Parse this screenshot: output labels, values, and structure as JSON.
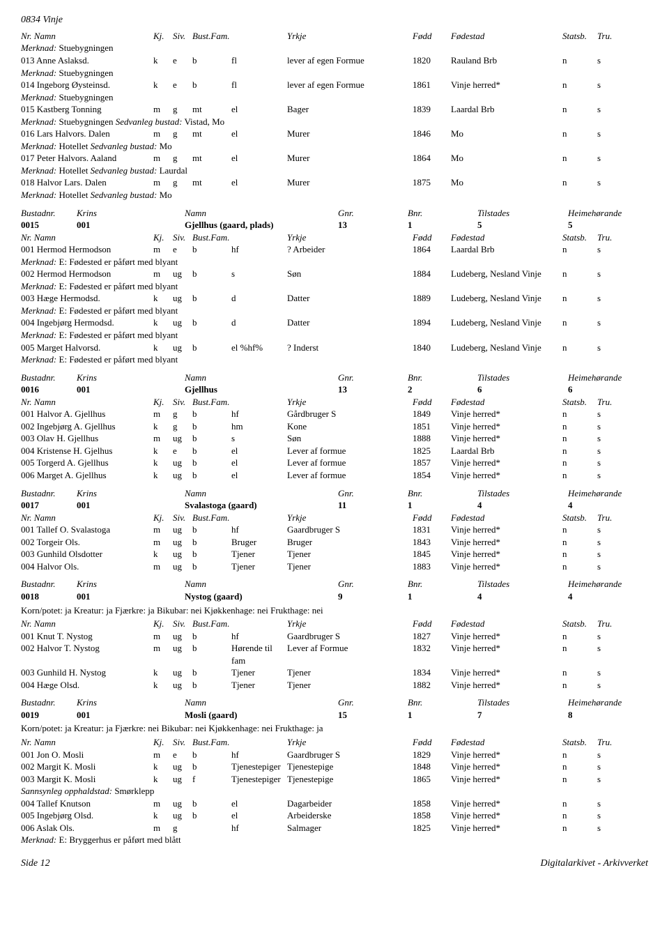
{
  "header_id": "0834 Vinje",
  "col_headers": {
    "nr": "Nr.",
    "namn": "Namn",
    "kj": "Kj.",
    "siv": "Siv.",
    "bust": "Bust.",
    "fam": "Fam.",
    "yrkje": "Yrkje",
    "fodd": "Fødd",
    "fodestad": "Fødestad",
    "statsb": "Statsb.",
    "tru": "Tru."
  },
  "merknad_label": "Merknad:",
  "sedvanleg_label": "Sedvanleg bustad:",
  "sannsynleg_label": "Sannsynleg opphaldstad:",
  "bustad_header": {
    "bustadnr": "Bustadnr.",
    "krins": "Krins",
    "namn": "Namn",
    "gnr": "Gnr.",
    "bnr": "Bnr.",
    "tilstades": "Tilstades",
    "heimehorande": "Heimehørande"
  },
  "top_merknad": "Stuebygningen",
  "top_rows": [
    {
      "nr": "013",
      "namn": "Anne Aslaksd.",
      "kj": "k",
      "siv": "e",
      "bust": "b",
      "fam": "fl",
      "yrkje": "lever af egen Formue",
      "fodd": "1820",
      "sted": "Rauland Brb",
      "s": "n",
      "t": "s",
      "merk": "Stuebygningen"
    },
    {
      "nr": "014",
      "namn": "Ingeborg Øysteinsd.",
      "kj": "k",
      "siv": "e",
      "bust": "b",
      "fam": "fl",
      "yrkje": "lever af egen Formue",
      "fodd": "1861",
      "sted": "Vinje herred*",
      "s": "n",
      "t": "s",
      "merk": "Stuebygningen"
    },
    {
      "nr": "015",
      "namn": "Kastberg Tonning",
      "kj": "m",
      "siv": "g",
      "bust": "mt",
      "fam": "el",
      "yrkje": "Bager",
      "fodd": "1839",
      "sted": "Laardal Brb",
      "s": "n",
      "t": "s",
      "merk": "Stuebygningen",
      "sed": "Vistad, Mo"
    },
    {
      "nr": "016",
      "namn": "Lars Halvors. Dalen",
      "kj": "m",
      "siv": "g",
      "bust": "mt",
      "fam": "el",
      "yrkje": "Murer",
      "fodd": "1846",
      "sted": "Mo",
      "s": "n",
      "t": "s",
      "merk": "Hotellet",
      "sed": "Mo"
    },
    {
      "nr": "017",
      "namn": "Peter Halvors. Aaland",
      "kj": "m",
      "siv": "g",
      "bust": "mt",
      "fam": "el",
      "yrkje": "Murer",
      "fodd": "1864",
      "sted": "Mo",
      "s": "n",
      "t": "s",
      "merk": "Hotellet",
      "sed": "Laurdal"
    },
    {
      "nr": "018",
      "namn": "Halvor Lars. Dalen",
      "kj": "m",
      "siv": "g",
      "bust": "mt",
      "fam": "el",
      "yrkje": "Murer",
      "fodd": "1875",
      "sted": "Mo",
      "s": "n",
      "t": "s",
      "merk": "Hotellet",
      "sed": "Mo"
    }
  ],
  "sections": [
    {
      "bustad": {
        "bnr": "0015",
        "krins": "001",
        "namn": "Gjellhus (gaard, plads)",
        "gnr": "13",
        "bn": "1",
        "til": "5",
        "heim": "5"
      },
      "rows": [
        {
          "nr": "001",
          "namn": "Hermod Hermodson",
          "kj": "m",
          "siv": "e",
          "bust": "b",
          "fam": "hf",
          "yrkje": "? Arbeider",
          "fodd": "1864",
          "sted": "Laardal Brb",
          "s": "n",
          "t": "s",
          "merk": "E: Fødested er påført med blyant"
        },
        {
          "nr": "002",
          "namn": "Hermod Hermodson",
          "kj": "m",
          "siv": "ug",
          "bust": "b",
          "fam": "s",
          "yrkje": "Søn",
          "fodd": "1884",
          "sted": "Ludeberg, Nesland Vinje",
          "s": "n",
          "t": "s",
          "merk": "E: Fødested er påført med blyant"
        },
        {
          "nr": "003",
          "namn": "Hæge Hermodsd.",
          "kj": "k",
          "siv": "ug",
          "bust": "b",
          "fam": "d",
          "yrkje": "Datter",
          "fodd": "1889",
          "sted": "Ludeberg, Nesland Vinje",
          "s": "n",
          "t": "s",
          "merk": "E: Fødested er påført med blyant"
        },
        {
          "nr": "004",
          "namn": "Ingebjørg Hermodsd.",
          "kj": "k",
          "siv": "ug",
          "bust": "b",
          "fam": "d",
          "yrkje": "Datter",
          "fodd": "1894",
          "sted": "Ludeberg, Nesland Vinje",
          "s": "n",
          "t": "s",
          "merk": "E: Fødested er påført med blyant"
        },
        {
          "nr": "005",
          "namn": "Marget Halvorsd.",
          "kj": "k",
          "siv": "ug",
          "bust": "b",
          "fam": "el %hf%",
          "yrkje": "? Inderst",
          "fodd": "1840",
          "sted": "Ludeberg, Nesland Vinje",
          "s": "n",
          "t": "s",
          "merk": "E: Fødested er påført med blyant"
        }
      ]
    },
    {
      "bustad": {
        "bnr": "0016",
        "krins": "001",
        "namn": "Gjellhus",
        "gnr": "13",
        "bn": "2",
        "til": "6",
        "heim": "6"
      },
      "rows": [
        {
          "nr": "001",
          "namn": "Halvor A. Gjellhus",
          "kj": "m",
          "siv": "g",
          "bust": "b",
          "fam": "hf",
          "yrkje": "Gårdbruger S",
          "fodd": "1849",
          "sted": "Vinje herred*",
          "s": "n",
          "t": "s"
        },
        {
          "nr": "002",
          "namn": "Ingebjørg A. Gjellhus",
          "kj": "k",
          "siv": "g",
          "bust": "b",
          "fam": "hm",
          "yrkje": "Kone",
          "fodd": "1851",
          "sted": "Vinje herred*",
          "s": "n",
          "t": "s"
        },
        {
          "nr": "003",
          "namn": "Olav H. Gjellhus",
          "kj": "m",
          "siv": "ug",
          "bust": "b",
          "fam": "s",
          "yrkje": "Søn",
          "fodd": "1888",
          "sted": "Vinje herred*",
          "s": "n",
          "t": "s"
        },
        {
          "nr": "004",
          "namn": "Kristense H. Gjelhus",
          "kj": "k",
          "siv": "e",
          "bust": "b",
          "fam": "el",
          "yrkje": "Lever af formue",
          "fodd": "1825",
          "sted": "Laardal Brb",
          "s": "n",
          "t": "s"
        },
        {
          "nr": "005",
          "namn": "Torgerd A. Gjellhus",
          "kj": "k",
          "siv": "ug",
          "bust": "b",
          "fam": "el",
          "yrkje": "Lever af formue",
          "fodd": "1857",
          "sted": "Vinje herred*",
          "s": "n",
          "t": "s"
        },
        {
          "nr": "006",
          "namn": "Marget A. Gjellhus",
          "kj": "k",
          "siv": "ug",
          "bust": "b",
          "fam": "el",
          "yrkje": "Lever af formue",
          "fodd": "1854",
          "sted": "Vinje herred*",
          "s": "n",
          "t": "s"
        }
      ]
    },
    {
      "bustad": {
        "bnr": "0017",
        "krins": "001",
        "namn": "Svalastoga (gaard)",
        "gnr": "11",
        "bn": "1",
        "til": "4",
        "heim": "4"
      },
      "rows": [
        {
          "nr": "001",
          "namn": "Tallef O. Svalastoga",
          "kj": "m",
          "siv": "ug",
          "bust": "b",
          "fam": "hf",
          "yrkje": "Gaardbruger S",
          "fodd": "1831",
          "sted": "Vinje herred*",
          "s": "n",
          "t": "s"
        },
        {
          "nr": "002",
          "namn": "Torgeir Ols.",
          "kj": "m",
          "siv": "ug",
          "bust": "b",
          "fam": "Bruger",
          "yrkje": "Bruger",
          "fodd": "1843",
          "sted": "Vinje herred*",
          "s": "n",
          "t": "s"
        },
        {
          "nr": "003",
          "namn": "Gunhild Olsdotter",
          "kj": "k",
          "siv": "ug",
          "bust": "b",
          "fam": "Tjener",
          "yrkje": "Tjener",
          "fodd": "1845",
          "sted": "Vinje herred*",
          "s": "n",
          "t": "s"
        },
        {
          "nr": "004",
          "namn": "Halvor Ols.",
          "kj": "m",
          "siv": "ug",
          "bust": "b",
          "fam": "Tjener",
          "yrkje": "Tjener",
          "fodd": "1883",
          "sted": "Vinje herred*",
          "s": "n",
          "t": "s"
        }
      ]
    },
    {
      "bustad": {
        "bnr": "0018",
        "krins": "001",
        "namn": "Nystog (gaard)",
        "gnr": "9",
        "bn": "1",
        "til": "4",
        "heim": "4"
      },
      "korn": "Korn/potet: ja Kreatur: ja Fjærkre: ja Bikubar: nei Kjøkkenhage: nei Frukthage: nei",
      "rows": [
        {
          "nr": "001",
          "namn": "Knut T. Nystog",
          "kj": "m",
          "siv": "ug",
          "bust": "b",
          "fam": "hf",
          "yrkje": "Gaardbruger S",
          "fodd": "1827",
          "sted": "Vinje herred*",
          "s": "n",
          "t": "s"
        },
        {
          "nr": "002",
          "namn": "Halvor T. Nystog",
          "kj": "m",
          "siv": "ug",
          "bust": "b",
          "fam": "Hørende til fam",
          "yrkje": "Lever af Formue",
          "fodd": "1832",
          "sted": "Vinje herred*",
          "s": "n",
          "t": "s",
          "wrap": true
        },
        {
          "nr": "003",
          "namn": "Gunhild H. Nystog",
          "kj": "k",
          "siv": "ug",
          "bust": "b",
          "fam": "Tjener",
          "yrkje": "Tjener",
          "fodd": "1834",
          "sted": "Vinje herred*",
          "s": "n",
          "t": "s"
        },
        {
          "nr": "004",
          "namn": "Hæge Olsd.",
          "kj": "k",
          "siv": "ug",
          "bust": "b",
          "fam": "Tjener",
          "yrkje": "Tjener",
          "fodd": "1882",
          "sted": "Vinje herred*",
          "s": "n",
          "t": "s"
        }
      ]
    },
    {
      "bustad": {
        "bnr": "0019",
        "krins": "001",
        "namn": "Mosli (gaard)",
        "gnr": "15",
        "bn": "1",
        "til": "7",
        "heim": "8"
      },
      "korn": "Korn/potet: ja Kreatur: ja Fjærkre: nei Bikubar: nei Kjøkkenhage: nei Frukthage: ja",
      "rows": [
        {
          "nr": "001",
          "namn": "Jon O. Mosli",
          "kj": "m",
          "siv": "e",
          "bust": "b",
          "fam": "hf",
          "yrkje": "Gaardbruger S",
          "fodd": "1829",
          "sted": "Vinje herred*",
          "s": "n",
          "t": "s"
        },
        {
          "nr": "002",
          "namn": "Margit K. Mosli",
          "kj": "k",
          "siv": "ug",
          "bust": "b",
          "fam": "Tjenestepiger",
          "yrkje": "Tjenestepige",
          "fodd": "1848",
          "sted": "Vinje herred*",
          "s": "n",
          "t": "s"
        },
        {
          "nr": "003",
          "namn": "Margit K. Mosli",
          "kj": "k",
          "siv": "ug",
          "bust": "f",
          "fam": "Tjenestepiger",
          "yrkje": "Tjenestepige",
          "fodd": "1865",
          "sted": "Vinje herred*",
          "s": "n",
          "t": "s",
          "sann": "Smørklepp"
        },
        {
          "nr": "004",
          "namn": "Tallef Knutson",
          "kj": "m",
          "siv": "ug",
          "bust": "b",
          "fam": "el",
          "yrkje": "Dagarbeider",
          "fodd": "1858",
          "sted": "Vinje herred*",
          "s": "n",
          "t": "s"
        },
        {
          "nr": "005",
          "namn": "Ingebjørg Olsd.",
          "kj": "k",
          "siv": "ug",
          "bust": "b",
          "fam": "el",
          "yrkje": "Arbeiderske",
          "fodd": "1858",
          "sted": "Vinje herred*",
          "s": "n",
          "t": "s"
        },
        {
          "nr": "006",
          "namn": "Aslak Ols.",
          "kj": "m",
          "siv": "g",
          "bust": "",
          "fam": "hf",
          "yrkje": "Salmager",
          "fodd": "1825",
          "sted": "Vinje herred*",
          "s": "n",
          "t": "s",
          "merk": "E: Bryggerhus er påført med blått"
        }
      ]
    }
  ],
  "footer": {
    "left": "Side 12",
    "right": "Digitalarkivet - Arkivverket"
  }
}
